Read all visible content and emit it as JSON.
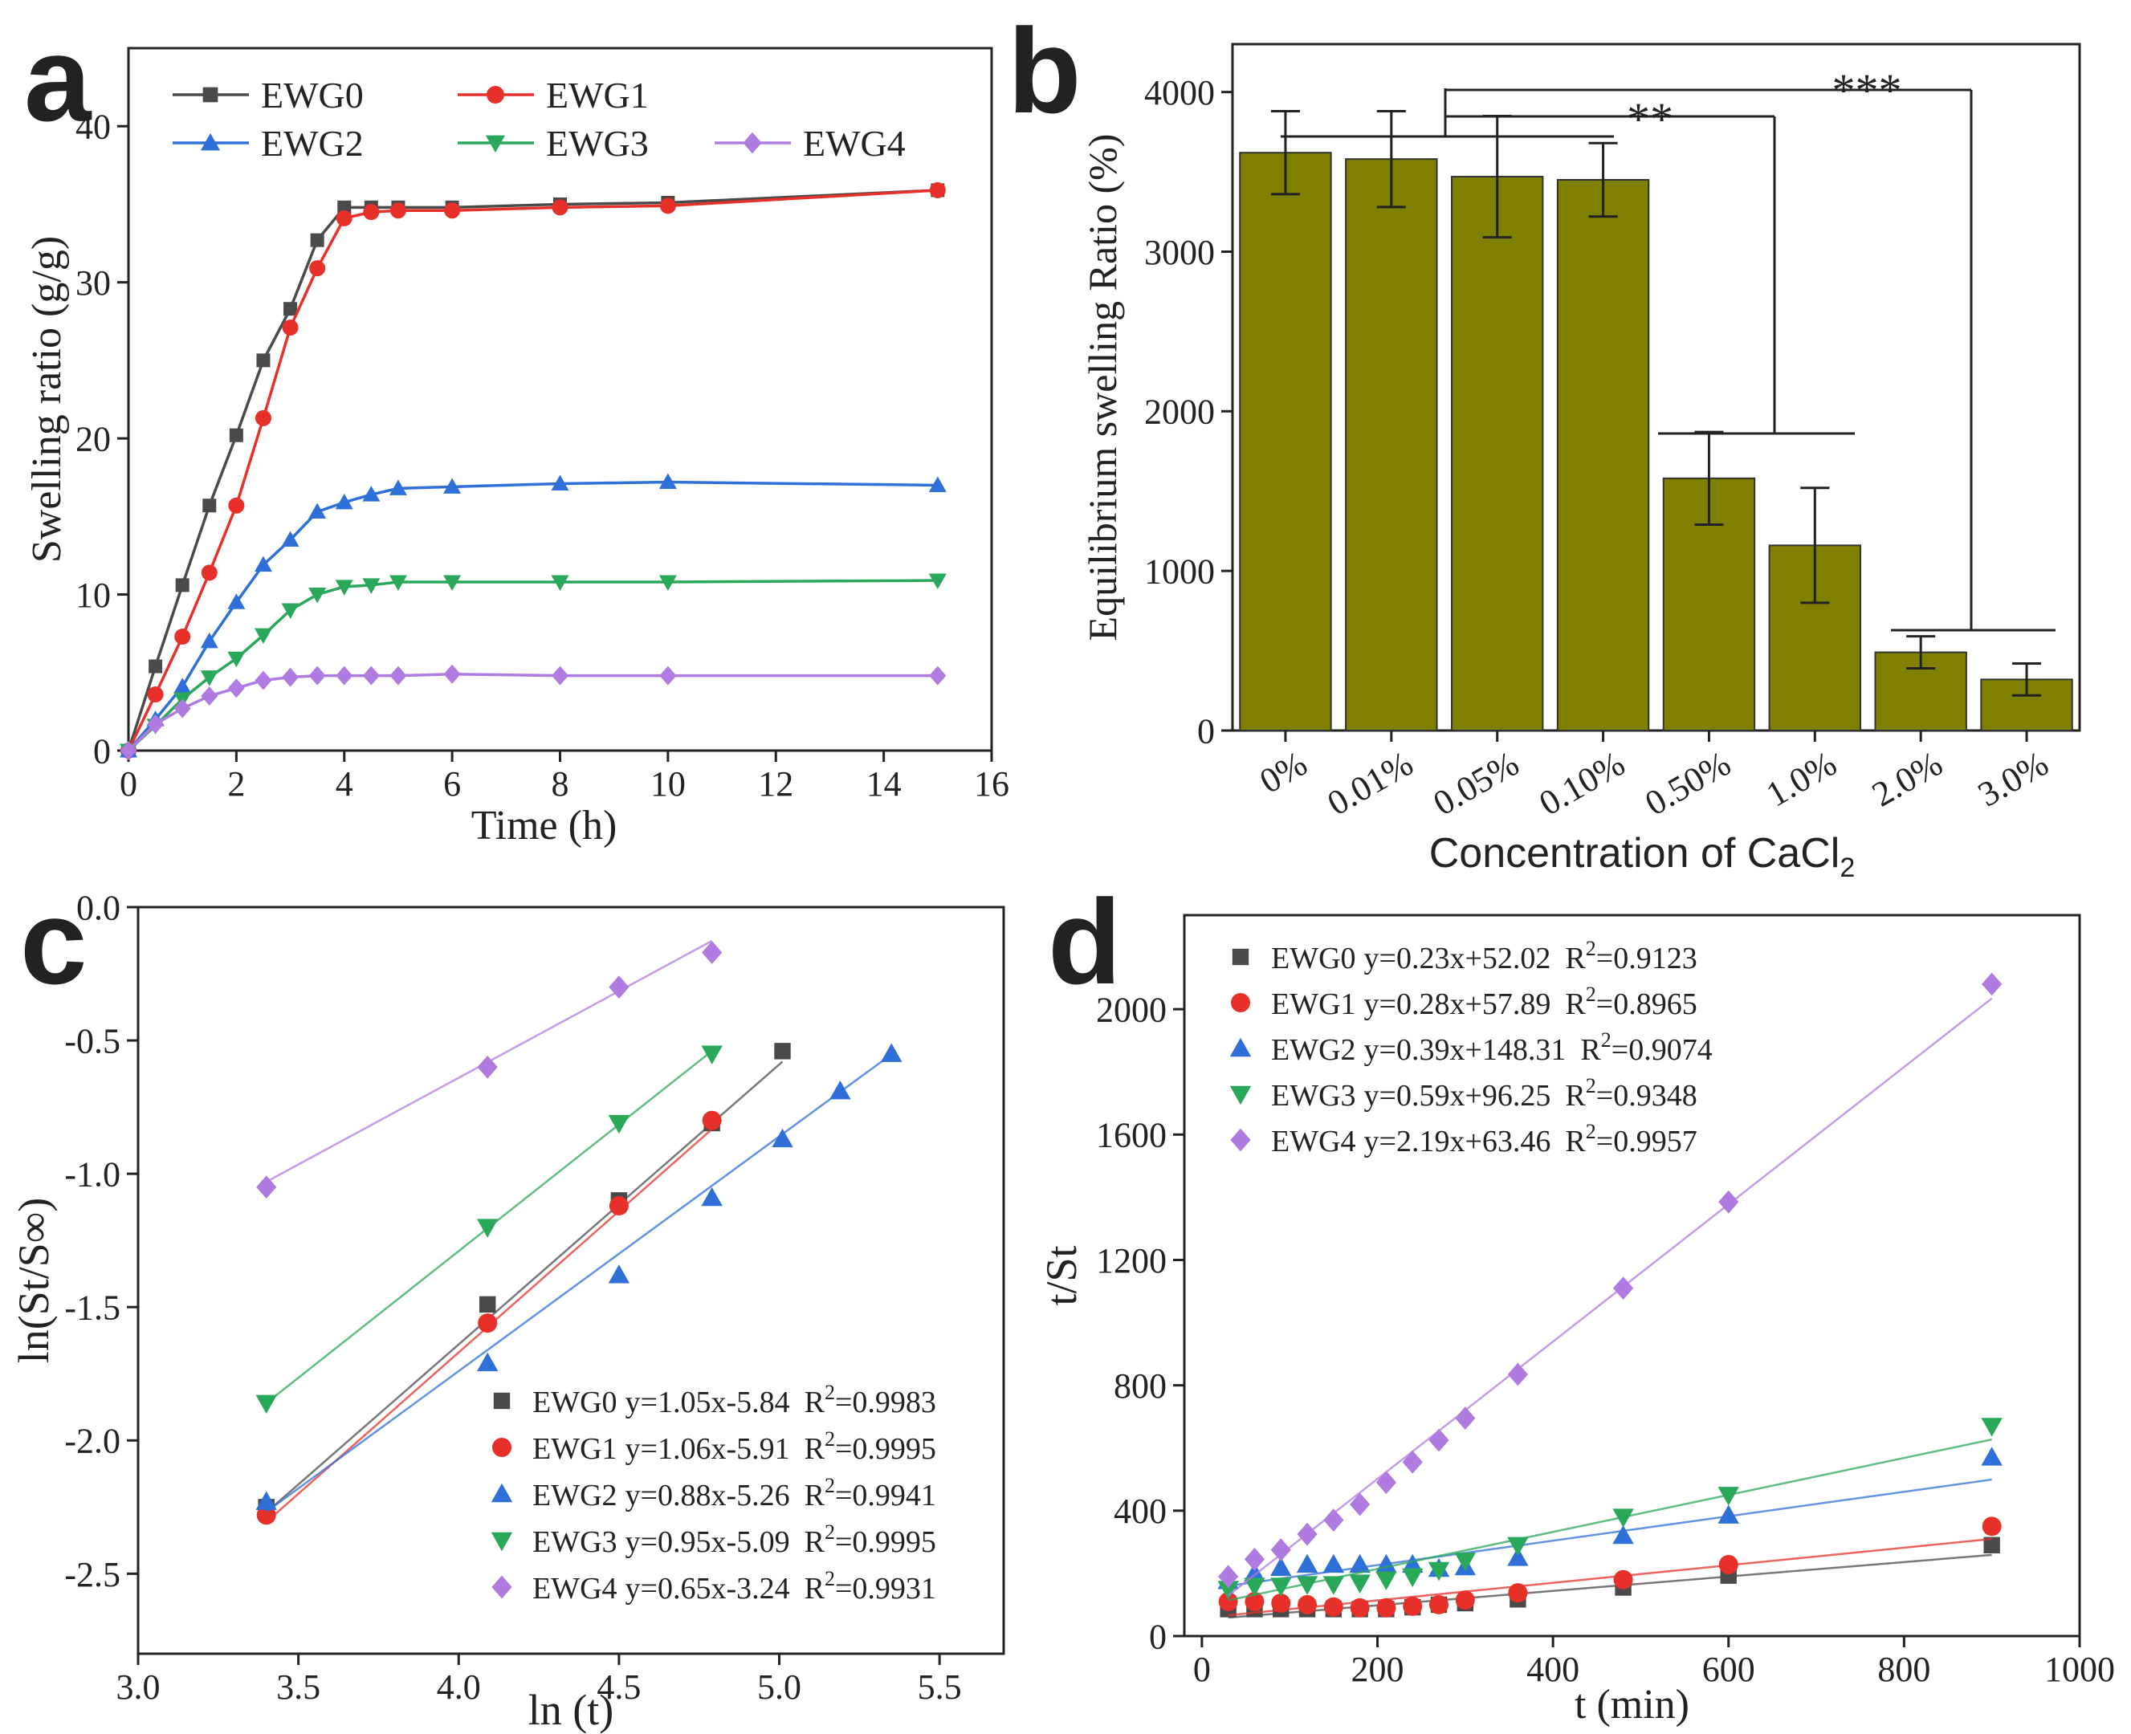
{
  "chart_data": [
    {
      "panel": "a",
      "type": "line",
      "xlabel": "Time (h)",
      "ylabel": "Swelling ratio (g/g)",
      "xlim": [
        0,
        16
      ],
      "ylim": [
        0,
        45
      ],
      "xticks": [
        "0",
        "2",
        "4",
        "6",
        "8",
        "10",
        "12",
        "14",
        "16"
      ],
      "yticks": [
        "0",
        "10",
        "20",
        "30",
        "40"
      ],
      "legend_position": "top",
      "x": [
        0,
        0.5,
        1,
        1.5,
        2,
        2.5,
        3,
        3.5,
        4,
        4.5,
        5,
        6,
        8,
        10,
        15
      ],
      "series": [
        {
          "name": "EWG0",
          "marker": "square",
          "color": "#4a4a4a",
          "values": [
            0,
            5.4,
            10.6,
            15.7,
            20.2,
            25.0,
            28.3,
            32.7,
            34.8,
            34.8,
            34.8,
            34.8,
            35.0,
            35.1,
            35.9
          ]
        },
        {
          "name": "EWG1",
          "marker": "circle",
          "color": "#e8302a",
          "values": [
            0,
            3.6,
            7.3,
            11.4,
            15.7,
            21.3,
            27.1,
            30.9,
            34.1,
            34.5,
            34.6,
            34.6,
            34.8,
            34.9,
            35.9
          ]
        },
        {
          "name": "EWG2",
          "marker": "triangle-up",
          "color": "#2e6fd8",
          "values": [
            0,
            2.0,
            4.1,
            7.0,
            9.5,
            11.9,
            13.5,
            15.3,
            15.9,
            16.4,
            16.8,
            16.9,
            17.1,
            17.2,
            17.0
          ]
        },
        {
          "name": "EWG3",
          "marker": "triangle-down",
          "color": "#2aa85a",
          "values": [
            0,
            1.6,
            3.3,
            4.7,
            5.9,
            7.4,
            9.0,
            10.0,
            10.5,
            10.6,
            10.8,
            10.8,
            10.8,
            10.8,
            10.9
          ]
        },
        {
          "name": "EWG4",
          "marker": "diamond",
          "color": "#b07be0",
          "values": [
            0,
            1.7,
            2.7,
            3.5,
            4.0,
            4.5,
            4.7,
            4.8,
            4.8,
            4.8,
            4.8,
            4.9,
            4.8,
            4.8,
            4.8
          ]
        }
      ]
    },
    {
      "panel": "b",
      "type": "bar",
      "xlabel": "Concentration of CaCl",
      "xlabel_sub": "2",
      "ylabel": "Equilibrium swelling Ratio (%)",
      "ylim": [
        0,
        4300
      ],
      "yticks": [
        "0",
        "1000",
        "2000",
        "3000",
        "4000"
      ],
      "categories": [
        "0%",
        "0.01%",
        "0.05%",
        "0.10%",
        "0.50%",
        "1.0%",
        "2.0%",
        "3.0%"
      ],
      "values": [
        3620,
        3580,
        3470,
        3450,
        1580,
        1160,
        490,
        320
      ],
      "errors": [
        260,
        300,
        380,
        230,
        290,
        360,
        100,
        100
      ],
      "bar_color": "#7f7f00",
      "significance": [
        "**",
        "***"
      ]
    },
    {
      "panel": "c",
      "type": "scatter",
      "xlabel": "ln (t)",
      "ylabel": "ln(St/S∞)",
      "xlim": [
        3.0,
        5.7
      ],
      "ylim": [
        -2.8,
        0.0
      ],
      "xticks": [
        "3.0",
        "3.5",
        "4.0",
        "4.5",
        "5.0",
        "5.5"
      ],
      "yticks": [
        "0.0",
        "-0.5",
        "-1.0",
        "-1.5",
        "-2.0",
        "-2.5"
      ],
      "legend_position": "bottom-right",
      "series": [
        {
          "name": "EWG0",
          "fit": "y=1.05x-5.84",
          "r2": "=0.9983",
          "marker": "square",
          "color": "#4a4a4a",
          "x": [
            3.4,
            4.09,
            4.5,
            4.79,
            5.01
          ],
          "y": [
            -2.25,
            -1.49,
            -1.1,
            -0.81,
            -0.54
          ],
          "fit_slope": 1.05,
          "fit_intercept": -5.84,
          "fit_range": [
            3.4,
            5.01
          ]
        },
        {
          "name": "EWG1",
          "fit": "y=1.06x-5.91",
          "r2": "=0.9995",
          "marker": "circle",
          "color": "#e8302a",
          "x": [
            3.4,
            4.09,
            4.5,
            4.79
          ],
          "y": [
            -2.28,
            -1.56,
            -1.12,
            -0.8
          ],
          "fit_slope": 1.06,
          "fit_intercept": -5.91,
          "fit_range": [
            3.4,
            4.79
          ]
        },
        {
          "name": "EWG2",
          "fit": "y=0.88x-5.26",
          "r2": "=0.9941",
          "marker": "triangle-up",
          "color": "#2e6fd8",
          "x": [
            3.4,
            4.09,
            4.5,
            4.79,
            5.01,
            5.19,
            5.35
          ],
          "y": [
            -2.23,
            -1.71,
            -1.38,
            -1.09,
            -0.87,
            -0.69,
            -0.55
          ],
          "fit_slope": 0.88,
          "fit_intercept": -5.26,
          "fit_range": [
            3.4,
            5.35
          ]
        },
        {
          "name": "EWG3",
          "fit": "y=0.95x-5.09",
          "r2": "=0.9995",
          "marker": "triangle-down",
          "color": "#2aa85a",
          "x": [
            3.4,
            4.09,
            4.5,
            4.79
          ],
          "y": [
            -1.86,
            -1.2,
            -0.81,
            -0.55
          ],
          "fit_slope": 0.95,
          "fit_intercept": -5.09,
          "fit_range": [
            3.4,
            4.79
          ]
        },
        {
          "name": "EWG4",
          "fit": "y=0.65x-3.24",
          "r2": "=0.9931",
          "marker": "diamond",
          "color": "#b07be0",
          "x": [
            3.4,
            4.09,
            4.5,
            4.79
          ],
          "y": [
            -1.05,
            -0.6,
            -0.3,
            -0.17
          ],
          "fit_slope": 0.65,
          "fit_intercept": -3.24,
          "fit_range": [
            3.4,
            4.79
          ]
        }
      ]
    },
    {
      "panel": "d",
      "type": "scatter",
      "xlabel": "t (min)",
      "ylabel": "t/St",
      "xlim": [
        -20,
        1000
      ],
      "ylim": [
        0,
        2300
      ],
      "xticks": [
        "0",
        "200",
        "400",
        "600",
        "800",
        "1000"
      ],
      "yticks": [
        "0",
        "400",
        "800",
        "1200",
        "1600",
        "2000"
      ],
      "legend_position": "top-left",
      "x": [
        30,
        60,
        90,
        120,
        150,
        180,
        210,
        240,
        270,
        300,
        360,
        480,
        600,
        900
      ],
      "series": [
        {
          "name": "EWG0",
          "fit": "y=0.23x+52.02",
          "r2": "=0.9123",
          "marker": "square",
          "color": "#4a4a4a",
          "values": [
            86,
            86,
            86,
            86,
            86,
            86,
            86,
            92,
            100,
            105,
            117,
            155,
            193,
            290
          ],
          "fit_slope": 0.23,
          "fit_intercept": 52.02
        },
        {
          "name": "EWG1",
          "fit": "y=0.28x+57.89",
          "r2": "=0.8965",
          "marker": "circle",
          "color": "#e8302a",
          "values": [
            110,
            110,
            105,
            100,
            93,
            90,
            90,
            95,
            100,
            115,
            138,
            180,
            228,
            350
          ],
          "fit_slope": 0.28,
          "fit_intercept": 57.89
        },
        {
          "name": "EWG2",
          "fit": "y=0.39x+148.31",
          "r2": "=0.9074",
          "marker": "triangle-up",
          "color": "#2e6fd8",
          "values": [
            176,
            200,
            218,
            228,
            228,
            228,
            228,
            228,
            215,
            220,
            250,
            320,
            385,
            570
          ],
          "fit_slope": 0.39,
          "fit_intercept": 148.31
        },
        {
          "name": "EWG3",
          "fit": "y=0.59x+96.25",
          "r2": "=0.9348",
          "marker": "triangle-down",
          "color": "#2aa85a",
          "values": [
            150,
            160,
            160,
            165,
            165,
            170,
            180,
            190,
            210,
            240,
            290,
            380,
            450,
            670
          ],
          "fit_slope": 0.59,
          "fit_intercept": 96.25
        },
        {
          "name": "EWG4",
          "fit": "y=2.19x+63.46",
          "r2": "=0.9957",
          "marker": "diamond",
          "color": "#b07be0",
          "values": [
            190,
            245,
            275,
            325,
            370,
            420,
            490,
            555,
            625,
            695,
            835,
            1110,
            1385,
            2080
          ],
          "fit_slope": 2.19,
          "fit_intercept": 63.46
        }
      ]
    }
  ],
  "panel_labels": [
    "a",
    "b",
    "c",
    "d"
  ],
  "r2_label": "R",
  "r2_sup": "2"
}
